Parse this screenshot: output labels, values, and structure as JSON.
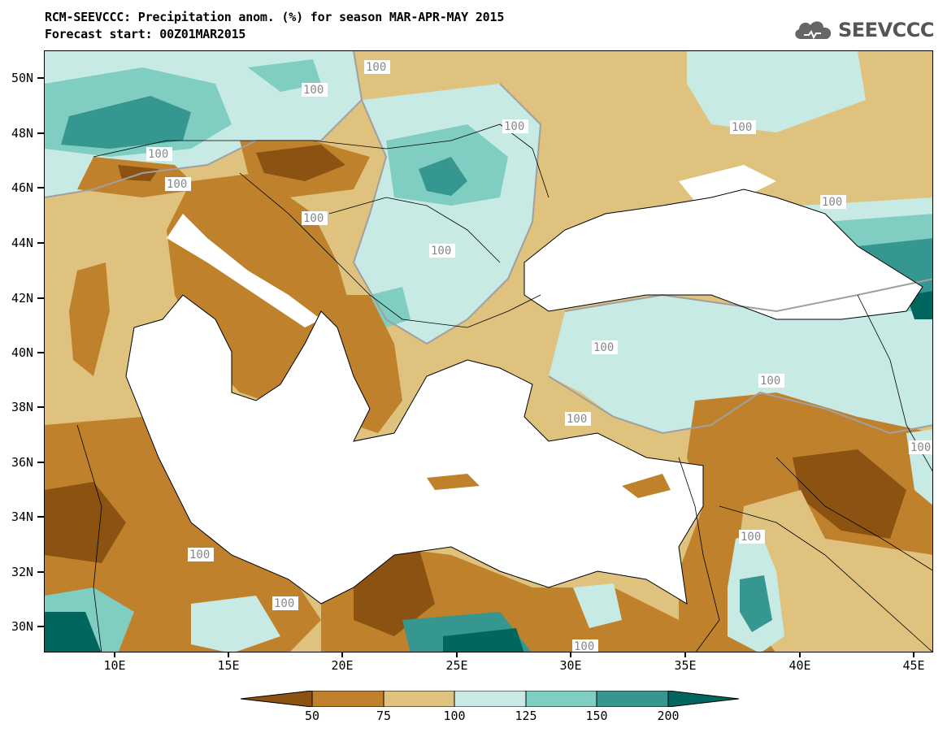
{
  "title_line1": "RCM-SEEVCCC: Precipitation anom. (%) for season MAR-APR-MAY 2015",
  "title_line2": "Forecast start: 00Z01MAR2015",
  "logo_text": "SEEVCCC",
  "y_axis_labels": [
    "50N",
    "48N",
    "46N",
    "44N",
    "42N",
    "40N",
    "38N",
    "36N",
    "34N",
    "32N",
    "30N"
  ],
  "x_axis_labels": [
    "10E",
    "15E",
    "20E",
    "25E",
    "30E",
    "35E",
    "40E",
    "45E"
  ],
  "contour_labels": [
    "100",
    "100",
    "100",
    "100",
    "100",
    "100",
    "100",
    "100",
    "100",
    "100",
    "100",
    "100",
    "100",
    "100",
    "100",
    "100",
    "100"
  ],
  "colorbar": {
    "labels": [
      "50",
      "75",
      "100",
      "125",
      "150",
      "200"
    ],
    "colors": [
      "#8c5212",
      "#bf812c",
      "#dfc27d",
      "#c7eae5",
      "#80cdc1",
      "#35978f",
      "#01665e"
    ]
  },
  "colors": {
    "very_dry": "#8c5212",
    "dry": "#bf812c",
    "slightly_dry": "#dfc27d",
    "slightly_wet": "#c7eae5",
    "wet": "#80cdc1",
    "very_wet": "#35978f",
    "extreme_wet": "#01665e",
    "sea": "#ffffff"
  }
}
